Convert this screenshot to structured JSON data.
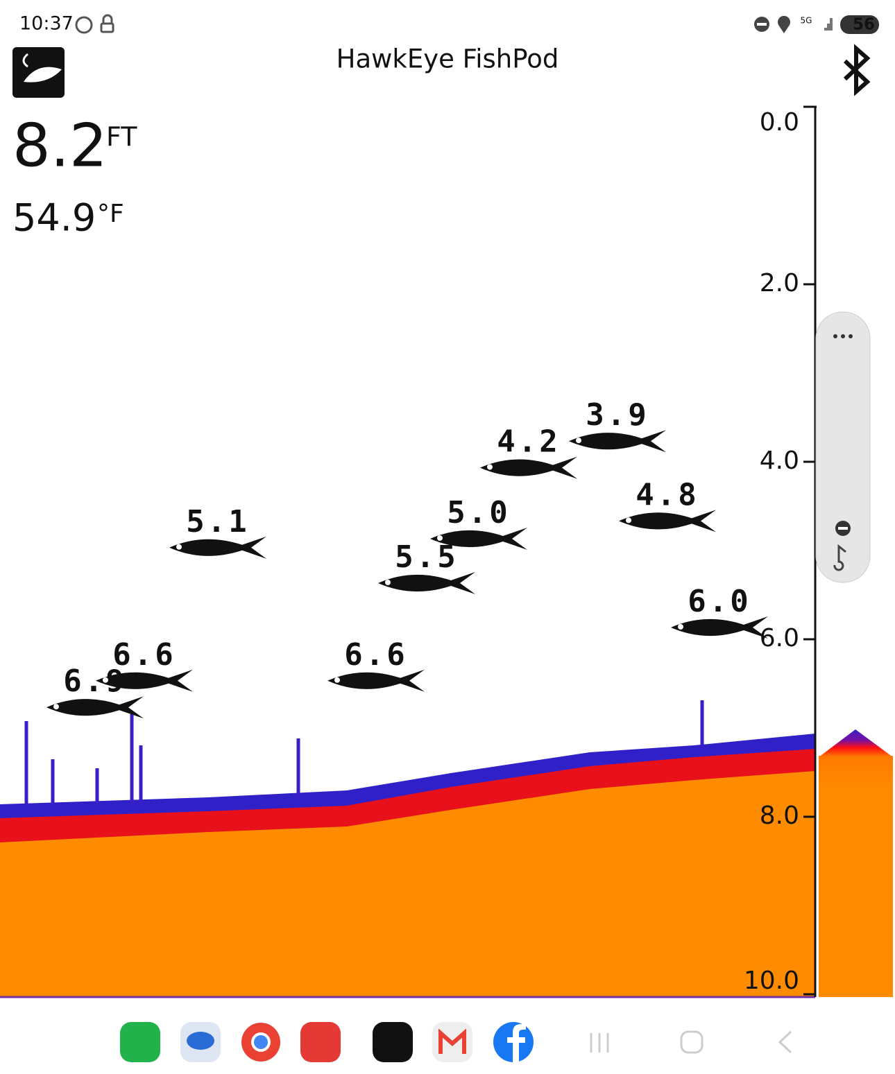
{
  "status_bar": {
    "time": "10:37",
    "network": "5G",
    "battery": "56"
  },
  "header": {
    "title": "HawkEye FishPod"
  },
  "readings": {
    "depth": "8.2",
    "depth_unit": "FT",
    "temperature": "54.9",
    "temperature_unit": "°F"
  },
  "depth_scale": {
    "range": [
      0,
      10
    ],
    "ticks": [
      {
        "value": 0,
        "label": "0.0"
      },
      {
        "value": 2,
        "label": "2.0"
      },
      {
        "value": 4,
        "label": "4.0"
      },
      {
        "value": 6,
        "label": "6.0"
      },
      {
        "value": 8,
        "label": "8.0"
      },
      {
        "value": 10,
        "label": "10.0"
      }
    ]
  },
  "fish": [
    {
      "value": 6.9,
      "label": "6.9"
    },
    {
      "value": 6.6,
      "label": "6.6"
    },
    {
      "value": 5.1,
      "label": "5.1"
    },
    {
      "value": 6.6,
      "label": "6.6"
    },
    {
      "value": 5.5,
      "label": "5.5"
    },
    {
      "value": 5.0,
      "label": "5.0"
    },
    {
      "value": 4.2,
      "label": "4.2"
    },
    {
      "value": 3.9,
      "label": "3.9"
    },
    {
      "value": 4.8,
      "label": "4.8"
    },
    {
      "value": 6.0,
      "label": "6.0"
    }
  ]
}
